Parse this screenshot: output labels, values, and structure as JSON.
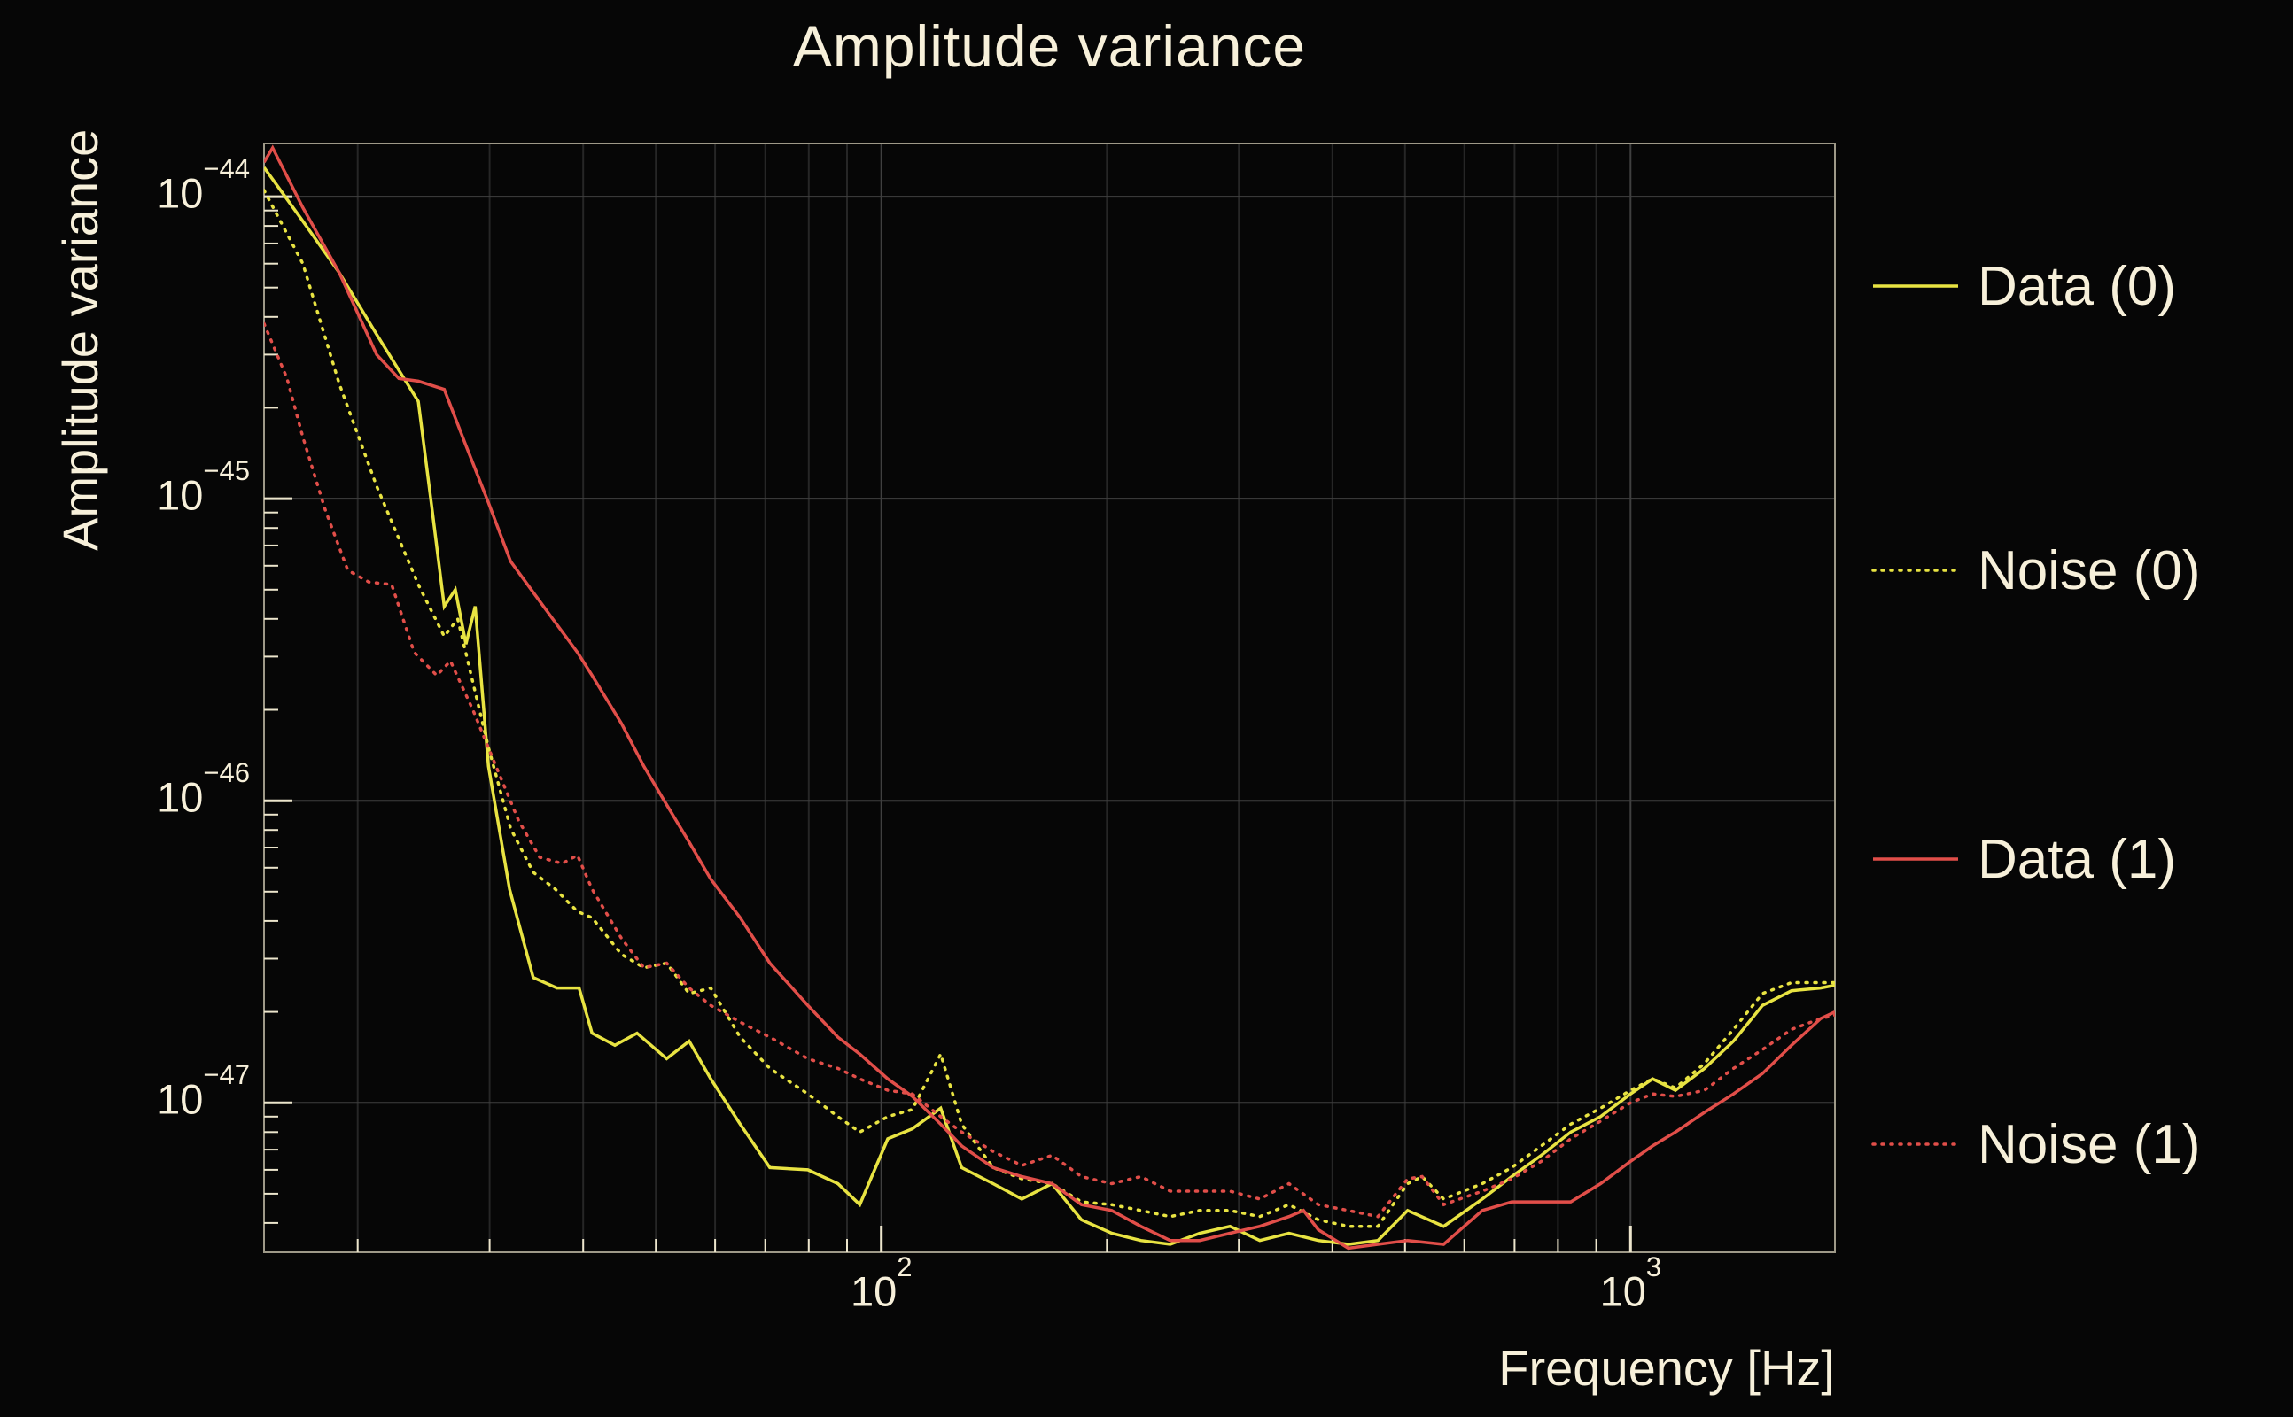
{
  "chart_data": {
    "type": "line",
    "title": "Amplitude variance",
    "xlabel": "Frequency [Hz]",
    "ylabel": "Amplitude variance",
    "x_scale": "log",
    "y_scale": "log",
    "xlim": [
      15,
      1874
    ],
    "ylim": [
      3.2e-48,
      1.5e-44
    ],
    "grid": true,
    "legend_position": "right",
    "background_color": "#060606",
    "text_color": "#f7f0da",
    "frame_color": "#9e9988",
    "tick_color": "#ece5cc",
    "grid_major_color": "#3f3f3f",
    "grid_minor_color": "#262626",
    "x_ticks": [
      {
        "value": 100,
        "base": "10",
        "exp": "2"
      },
      {
        "value": 1000,
        "base": "10",
        "exp": "3"
      }
    ],
    "y_ticks": [
      {
        "value": 1e-44,
        "base": "10",
        "exp": "−44"
      },
      {
        "value": 1e-45,
        "base": "10",
        "exp": "−45"
      },
      {
        "value": 1e-46,
        "base": "10",
        "exp": "−46"
      },
      {
        "value": 1e-47,
        "base": "10",
        "exp": "−47"
      }
    ],
    "series": [
      {
        "name": "Data (0)",
        "color": "#e8e342",
        "style": "solid",
        "points": [
          [
            15,
            1.25e-44
          ],
          [
            16.9,
            8.3e-45
          ],
          [
            18.9,
            5.6e-45
          ],
          [
            21.2,
            3.5e-45
          ],
          [
            24.1,
            2.1e-45
          ],
          [
            25.1,
            9.5e-46
          ],
          [
            26.1,
            4.4e-46
          ],
          [
            27,
            5e-46
          ],
          [
            27.9,
            3.3e-46
          ],
          [
            28.7,
            4.4e-46
          ],
          [
            29.9,
            1.3e-46
          ],
          [
            31.9,
            5.1e-47
          ],
          [
            34.3,
            2.6e-47
          ],
          [
            36.9,
            2.4e-47
          ],
          [
            39.5,
            2.4e-47
          ],
          [
            41.1,
            1.7e-47
          ],
          [
            44.1,
            1.55e-47
          ],
          [
            47.2,
            1.7e-47
          ],
          [
            51.7,
            1.4e-47
          ],
          [
            55.4,
            1.6e-47
          ],
          [
            59.2,
            1.2e-47
          ],
          [
            64.8,
            8.5e-48
          ],
          [
            71,
            6.1e-48
          ],
          [
            79.8,
            6e-48
          ],
          [
            87.5,
            5.4e-48
          ],
          [
            93.6,
            4.6e-48
          ],
          [
            102,
            7.6e-48
          ],
          [
            110,
            8.2e-48
          ],
          [
            120,
            9.6e-48
          ],
          [
            128,
            6.1e-48
          ],
          [
            141,
            5.4e-48
          ],
          [
            154,
            4.8e-48
          ],
          [
            169,
            5.4e-48
          ],
          [
            185,
            4.1e-48
          ],
          [
            203,
            3.7e-48
          ],
          [
            222,
            3.5e-48
          ],
          [
            243,
            3.4e-48
          ],
          [
            266,
            3.7e-48
          ],
          [
            292,
            3.9e-48
          ],
          [
            320,
            3.5e-48
          ],
          [
            350,
            3.7e-48
          ],
          [
            383,
            3.5e-48
          ],
          [
            420,
            3.4e-48
          ],
          [
            460,
            3.5e-48
          ],
          [
            504,
            4.4e-48
          ],
          [
            563,
            3.9e-48
          ],
          [
            634,
            4.8e-48
          ],
          [
            694,
            5.7e-48
          ],
          [
            760,
            6.7e-48
          ],
          [
            832,
            8e-48
          ],
          [
            912,
            9e-48
          ],
          [
            1000,
            1.07e-47
          ],
          [
            1070,
            1.2e-47
          ],
          [
            1148,
            1.1e-47
          ],
          [
            1255,
            1.3e-47
          ],
          [
            1372,
            1.6e-47
          ],
          [
            1500,
            2.1e-47
          ],
          [
            1640,
            2.35e-47
          ],
          [
            1793,
            2.4e-47
          ],
          [
            1874,
            2.45e-47
          ]
        ]
      },
      {
        "name": "Noise (0)",
        "color": "#e8e342",
        "style": "dotted",
        "points": [
          [
            15,
            1.05e-44
          ],
          [
            16.9,
            6e-45
          ],
          [
            18.9,
            2.4e-45
          ],
          [
            21.2,
            1.1e-45
          ],
          [
            24.1,
            5.2e-46
          ],
          [
            26.1,
            3.5e-46
          ],
          [
            27.2,
            4e-46
          ],
          [
            29.9,
            1.5e-46
          ],
          [
            32,
            8.1e-47
          ],
          [
            34.3,
            5.8e-47
          ],
          [
            36.7,
            5.1e-47
          ],
          [
            39.3,
            4.3e-47
          ],
          [
            41.1,
            4.1e-47
          ],
          [
            45,
            3.1e-47
          ],
          [
            48.2,
            2.8e-47
          ],
          [
            51.7,
            2.9e-47
          ],
          [
            55.4,
            2.3e-47
          ],
          [
            59.2,
            2.4e-47
          ],
          [
            64.8,
            1.65e-47
          ],
          [
            71,
            1.3e-47
          ],
          [
            79.8,
            1.07e-47
          ],
          [
            87.5,
            9e-48
          ],
          [
            93.6,
            8e-48
          ],
          [
            102,
            9e-48
          ],
          [
            110,
            9.5e-48
          ],
          [
            120,
            1.45e-47
          ],
          [
            128,
            8.5e-48
          ],
          [
            141,
            6.1e-48
          ],
          [
            154,
            5.6e-48
          ],
          [
            169,
            5.4e-48
          ],
          [
            185,
            4.7e-48
          ],
          [
            203,
            4.6e-48
          ],
          [
            222,
            4.4e-48
          ],
          [
            243,
            4.2e-48
          ],
          [
            266,
            4.4e-48
          ],
          [
            292,
            4.4e-48
          ],
          [
            320,
            4.2e-48
          ],
          [
            350,
            4.6e-48
          ],
          [
            383,
            4.1e-48
          ],
          [
            420,
            3.9e-48
          ],
          [
            460,
            3.9e-48
          ],
          [
            504,
            5.4e-48
          ],
          [
            527,
            5.7e-48
          ],
          [
            563,
            4.8e-48
          ],
          [
            634,
            5.4e-48
          ],
          [
            694,
            6.1e-48
          ],
          [
            760,
            7.2e-48
          ],
          [
            832,
            8.5e-48
          ],
          [
            912,
            9.6e-48
          ],
          [
            1000,
            1.1e-47
          ],
          [
            1070,
            1.2e-47
          ],
          [
            1148,
            1.12e-47
          ],
          [
            1255,
            1.35e-47
          ],
          [
            1372,
            1.75e-47
          ],
          [
            1500,
            2.3e-47
          ],
          [
            1640,
            2.5e-47
          ],
          [
            1793,
            2.5e-47
          ],
          [
            1874,
            2.5e-47
          ]
        ]
      },
      {
        "name": "Data (1)",
        "color": "#e14e49",
        "style": "solid",
        "points": [
          [
            15,
            1.3e-44
          ],
          [
            15.4,
            1.45e-44
          ],
          [
            16.9,
            9.2e-45
          ],
          [
            18.9,
            5.6e-45
          ],
          [
            21.2,
            3e-45
          ],
          [
            22.7,
            2.5e-45
          ],
          [
            24.1,
            2.45e-45
          ],
          [
            26.1,
            2.3e-45
          ],
          [
            27.9,
            1.5e-45
          ],
          [
            29.9,
            9.7e-46
          ],
          [
            32,
            6.2e-46
          ],
          [
            34.3,
            4.9e-46
          ],
          [
            36.7,
            3.9e-46
          ],
          [
            39.3,
            3.1e-46
          ],
          [
            41.1,
            2.6e-46
          ],
          [
            45,
            1.8e-46
          ],
          [
            48.2,
            1.3e-46
          ],
          [
            51.7,
            9.7e-47
          ],
          [
            55.4,
            7.3e-47
          ],
          [
            59.2,
            5.5e-47
          ],
          [
            64.8,
            4.1e-47
          ],
          [
            71,
            2.9e-47
          ],
          [
            79.8,
            2.1e-47
          ],
          [
            87.5,
            1.65e-47
          ],
          [
            93.6,
            1.45e-47
          ],
          [
            102,
            1.2e-47
          ],
          [
            110,
            1.05e-47
          ],
          [
            120,
            8.5e-48
          ],
          [
            128,
            7.2e-48
          ],
          [
            141,
            6.1e-48
          ],
          [
            154,
            5.7e-48
          ],
          [
            169,
            5.4e-48
          ],
          [
            185,
            4.6e-48
          ],
          [
            203,
            4.4e-48
          ],
          [
            222,
            3.9e-48
          ],
          [
            243,
            3.5e-48
          ],
          [
            266,
            3.5e-48
          ],
          [
            292,
            3.7e-48
          ],
          [
            320,
            3.9e-48
          ],
          [
            350,
            4.2e-48
          ],
          [
            366,
            4.4e-48
          ],
          [
            383,
            3.8e-48
          ],
          [
            420,
            3.3e-48
          ],
          [
            460,
            3.4e-48
          ],
          [
            504,
            3.5e-48
          ],
          [
            563,
            3.4e-48
          ],
          [
            634,
            4.4e-48
          ],
          [
            694,
            4.7e-48
          ],
          [
            760,
            4.7e-48
          ],
          [
            832,
            4.7e-48
          ],
          [
            912,
            5.4e-48
          ],
          [
            1000,
            6.4e-48
          ],
          [
            1070,
            7.2e-48
          ],
          [
            1148,
            8e-48
          ],
          [
            1255,
            9.3e-48
          ],
          [
            1372,
            1.07e-47
          ],
          [
            1500,
            1.25e-47
          ],
          [
            1640,
            1.55e-47
          ],
          [
            1793,
            1.9e-47
          ],
          [
            1874,
            2e-47
          ]
        ]
      },
      {
        "name": "Noise (1)",
        "color": "#e14e49",
        "style": "dotted",
        "points": [
          [
            15,
            3.8e-45
          ],
          [
            16.1,
            2.5e-45
          ],
          [
            16.9,
            1.6e-45
          ],
          [
            18.1,
            9.2e-46
          ],
          [
            19.4,
            5.8e-46
          ],
          [
            20.7,
            5.3e-46
          ],
          [
            22.2,
            5.2e-46
          ],
          [
            23.8,
            3.1e-46
          ],
          [
            25.5,
            2.6e-46
          ],
          [
            26.6,
            2.9e-46
          ],
          [
            28.5,
            2e-46
          ],
          [
            30.6,
            1.3e-46
          ],
          [
            32.8,
            8.6e-47
          ],
          [
            35,
            6.5e-47
          ],
          [
            37.5,
            6.2e-47
          ],
          [
            39.3,
            6.6e-47
          ],
          [
            41.1,
            5.1e-47
          ],
          [
            45,
            3.5e-47
          ],
          [
            48.2,
            2.8e-47
          ],
          [
            51.7,
            2.9e-47
          ],
          [
            55.4,
            2.4e-47
          ],
          [
            59.2,
            2.1e-47
          ],
          [
            64.8,
            1.85e-47
          ],
          [
            71,
            1.65e-47
          ],
          [
            79.8,
            1.4e-47
          ],
          [
            87.5,
            1.3e-47
          ],
          [
            93.6,
            1.2e-47
          ],
          [
            102,
            1.1e-47
          ],
          [
            110,
            1.07e-47
          ],
          [
            120,
            9e-48
          ],
          [
            128,
            8e-48
          ],
          [
            141,
            6.9e-48
          ],
          [
            154,
            6.2e-48
          ],
          [
            169,
            6.7e-48
          ],
          [
            185,
            5.7e-48
          ],
          [
            203,
            5.4e-48
          ],
          [
            222,
            5.7e-48
          ],
          [
            243,
            5.1e-48
          ],
          [
            266,
            5.1e-48
          ],
          [
            292,
            5.1e-48
          ],
          [
            320,
            4.8e-48
          ],
          [
            350,
            5.4e-48
          ],
          [
            383,
            4.6e-48
          ],
          [
            420,
            4.4e-48
          ],
          [
            460,
            4.2e-48
          ],
          [
            504,
            5.6e-48
          ],
          [
            527,
            5.7e-48
          ],
          [
            563,
            4.6e-48
          ],
          [
            634,
            5.1e-48
          ],
          [
            694,
            5.6e-48
          ],
          [
            760,
            6.4e-48
          ],
          [
            832,
            7.6e-48
          ],
          [
            912,
            8.7e-48
          ],
          [
            1000,
            1e-47
          ],
          [
            1070,
            1.07e-47
          ],
          [
            1148,
            1.05e-47
          ],
          [
            1255,
            1.1e-47
          ],
          [
            1372,
            1.3e-47
          ],
          [
            1500,
            1.5e-47
          ],
          [
            1640,
            1.75e-47
          ],
          [
            1793,
            1.9e-47
          ],
          [
            1874,
            1.95e-47
          ]
        ]
      }
    ]
  }
}
